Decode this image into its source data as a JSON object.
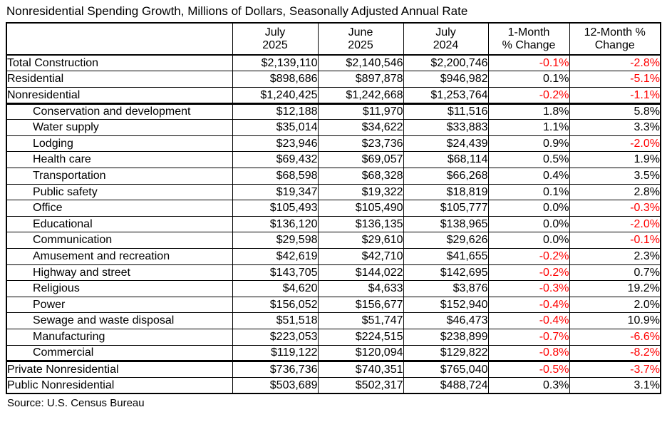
{
  "chart_data": {
    "type": "table",
    "title": "Nonresidential Spending Growth, Millions of Dollars, Seasonally Adjusted Annual Rate",
    "source": "Source: U.S. Census Bureau",
    "negative_color": "#ff0000",
    "columns": [
      {
        "id": "category",
        "lines": []
      },
      {
        "id": "jul-2025",
        "lines": [
          "July",
          "2025"
        ]
      },
      {
        "id": "jun-2025",
        "lines": [
          "June",
          "2025"
        ]
      },
      {
        "id": "jul-2024",
        "lines": [
          "July",
          "2024"
        ]
      },
      {
        "id": "1-month-pct-change",
        "lines": [
          "1-Month",
          "% Change"
        ]
      },
      {
        "id": "12-month-pct-change",
        "lines": [
          "12-Month %",
          "Change"
        ]
      }
    ],
    "rows": [
      {
        "label": "Total Construction",
        "indent": false,
        "section_end": false,
        "values": [
          "$2,139,110",
          "$2,140,546",
          "$2,200,746",
          "-0.1%",
          "-2.8%"
        ]
      },
      {
        "label": "Residential",
        "indent": false,
        "section_end": false,
        "values": [
          "$898,686",
          "$897,878",
          "$946,982",
          "0.1%",
          "-5.1%"
        ]
      },
      {
        "label": "Nonresidential",
        "indent": false,
        "section_end": true,
        "values": [
          "$1,240,425",
          "$1,242,668",
          "$1,253,764",
          "-0.2%",
          "-1.1%"
        ]
      },
      {
        "label": "Conservation and development",
        "indent": true,
        "section_end": false,
        "values": [
          "$12,188",
          "$11,970",
          "$11,516",
          "1.8%",
          "5.8%"
        ]
      },
      {
        "label": "Water supply",
        "indent": true,
        "section_end": false,
        "values": [
          "$35,014",
          "$34,622",
          "$33,883",
          "1.1%",
          "3.3%"
        ]
      },
      {
        "label": "Lodging",
        "indent": true,
        "section_end": false,
        "values": [
          "$23,946",
          "$23,736",
          "$24,439",
          "0.9%",
          "-2.0%"
        ]
      },
      {
        "label": "Health care",
        "indent": true,
        "section_end": false,
        "values": [
          "$69,432",
          "$69,057",
          "$68,114",
          "0.5%",
          "1.9%"
        ]
      },
      {
        "label": "Transportation",
        "indent": true,
        "section_end": false,
        "values": [
          "$68,598",
          "$68,328",
          "$66,268",
          "0.4%",
          "3.5%"
        ]
      },
      {
        "label": "Public safety",
        "indent": true,
        "section_end": false,
        "values": [
          "$19,347",
          "$19,322",
          "$18,819",
          "0.1%",
          "2.8%"
        ]
      },
      {
        "label": "Office",
        "indent": true,
        "section_end": false,
        "values": [
          "$105,493",
          "$105,490",
          "$105,777",
          "0.0%",
          "-0.3%"
        ]
      },
      {
        "label": "Educational",
        "indent": true,
        "section_end": false,
        "values": [
          "$136,120",
          "$136,135",
          "$138,965",
          "0.0%",
          "-2.0%"
        ]
      },
      {
        "label": "Communication",
        "indent": true,
        "section_end": false,
        "values": [
          "$29,598",
          "$29,610",
          "$29,626",
          "0.0%",
          "-0.1%"
        ]
      },
      {
        "label": "Amusement and recreation",
        "indent": true,
        "section_end": false,
        "values": [
          "$42,619",
          "$42,710",
          "$41,655",
          "-0.2%",
          "2.3%"
        ]
      },
      {
        "label": "Highway and street",
        "indent": true,
        "section_end": false,
        "values": [
          "$143,705",
          "$144,022",
          "$142,695",
          "-0.2%",
          "0.7%"
        ]
      },
      {
        "label": "Religious",
        "indent": true,
        "section_end": false,
        "values": [
          "$4,620",
          "$4,633",
          "$3,876",
          "-0.3%",
          "19.2%"
        ]
      },
      {
        "label": "Power",
        "indent": true,
        "section_end": false,
        "values": [
          "$156,052",
          "$156,677",
          "$152,940",
          "-0.4%",
          "2.0%"
        ]
      },
      {
        "label": "Sewage and waste disposal",
        "indent": true,
        "section_end": false,
        "values": [
          "$51,518",
          "$51,747",
          "$46,473",
          "-0.4%",
          "10.9%"
        ]
      },
      {
        "label": "Manufacturing",
        "indent": true,
        "section_end": false,
        "values": [
          "$223,053",
          "$224,515",
          "$238,899",
          "-0.7%",
          "-6.6%"
        ]
      },
      {
        "label": "Commercial",
        "indent": true,
        "section_end": true,
        "values": [
          "$119,122",
          "$120,094",
          "$129,822",
          "-0.8%",
          "-8.2%"
        ]
      },
      {
        "label": "Private Nonresidential",
        "indent": false,
        "section_end": false,
        "values": [
          "$736,736",
          "$740,351",
          "$765,040",
          "-0.5%",
          "-3.7%"
        ]
      },
      {
        "label": "Public Nonresidential",
        "indent": false,
        "section_end": false,
        "values": [
          "$503,689",
          "$502,317",
          "$488,724",
          "0.3%",
          "3.1%"
        ]
      }
    ]
  }
}
